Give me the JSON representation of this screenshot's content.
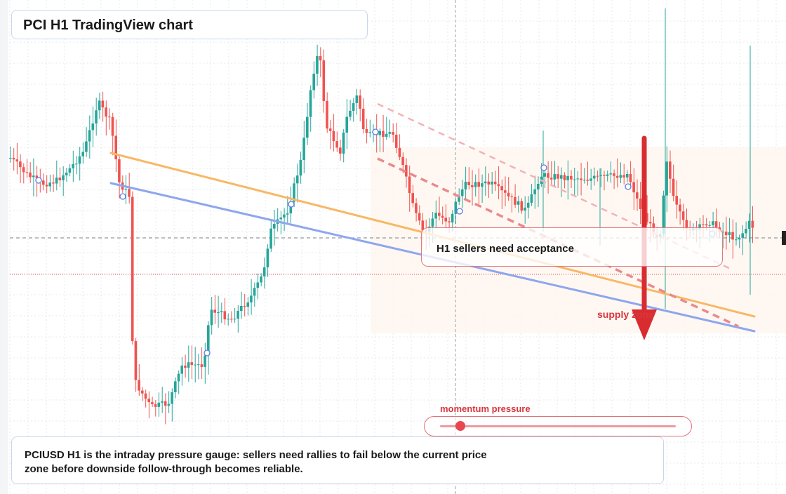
{
  "header": {
    "title": "PCI H1 TradingView chart"
  },
  "annotations": {
    "acceptance_label": "H1 sellers need acceptance",
    "supply_label": "supply zone"
  },
  "momentum": {
    "label": "momentum pressure",
    "level": 0.07
  },
  "caption": {
    "text": "PCIUSD H1 is the intraday pressure gauge: sellers need rallies to fail below the current price zone before downside follow-through becomes reliable."
  },
  "colors": {
    "up": "#26a69a",
    "down": "#ef5350",
    "orange_trend": "#f8b865",
    "blue_trend": "#8ea6ee",
    "pink_dashed": "#e98a8e",
    "arrow": "#d82c31",
    "grid": "#e4e8ee"
  },
  "chart_data": {
    "type": "candlestick",
    "symbol": "PCIUSD",
    "timeframe": "H1"
  }
}
